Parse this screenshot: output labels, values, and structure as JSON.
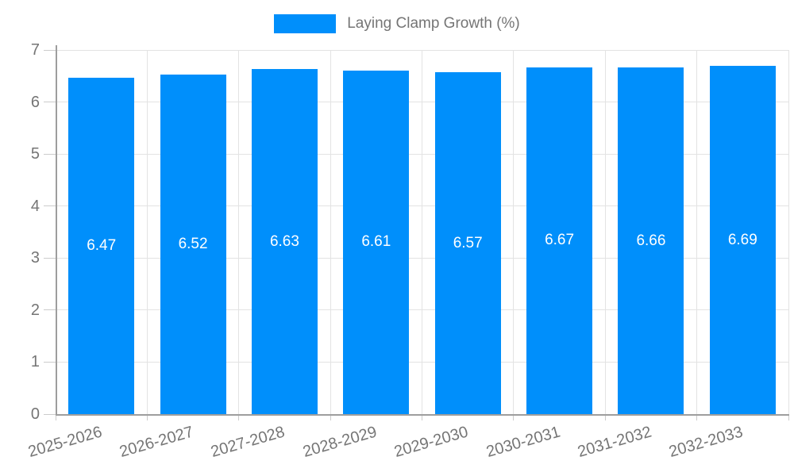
{
  "chart_data": {
    "type": "bar",
    "title": "",
    "legend": {
      "label": "Laying Clamp Growth (%)",
      "position": "top"
    },
    "categories": [
      "2025-2026",
      "2026-2027",
      "2027-2028",
      "2028-2029",
      "2029-2030",
      "2030-2031",
      "2031-2032",
      "2032-2033"
    ],
    "values": [
      6.47,
      6.52,
      6.63,
      6.61,
      6.57,
      6.67,
      6.66,
      6.69
    ],
    "value_labels": [
      "6.47",
      "6.52",
      "6.63",
      "6.61",
      "6.57",
      "6.67",
      "6.66",
      "6.69"
    ],
    "xlabel": "",
    "ylabel": "",
    "ylim": [
      0,
      7
    ],
    "yticks": [
      0,
      1,
      2,
      3,
      4,
      5,
      6,
      7
    ],
    "grid": true,
    "colors": {
      "bar": "#008FFB",
      "axis_text": "#757575",
      "value_label_text": "#FFFFFF",
      "gridline": "#E3E3E3",
      "tick": "#CCCCCC",
      "axis_line": "#9E9E9E"
    }
  }
}
